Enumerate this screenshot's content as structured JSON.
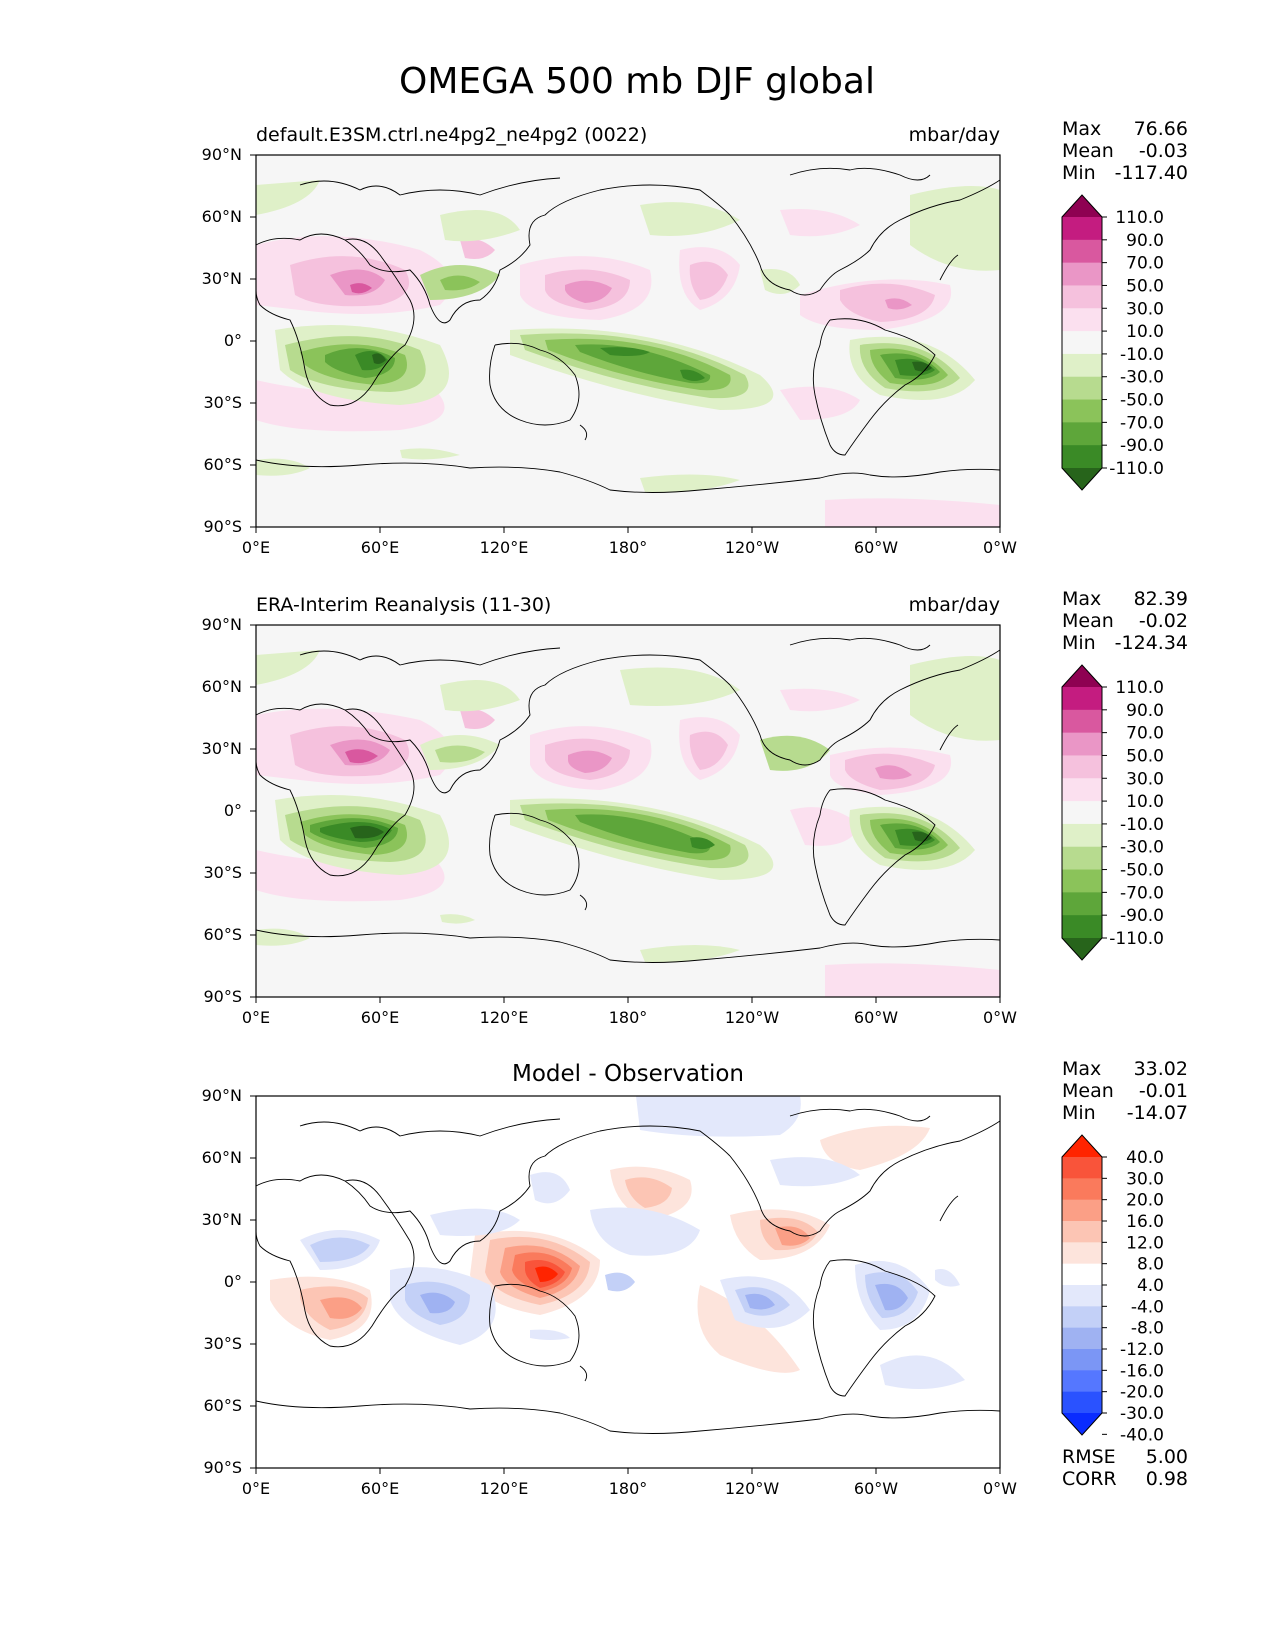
{
  "title": "OMEGA 500 mb DJF global",
  "x_ticks": [
    "0°E",
    "60°E",
    "120°E",
    "180°",
    "120°W",
    "60°W",
    "0°W"
  ],
  "y_ticks": [
    "90°N",
    "60°N",
    "30°N",
    "0°",
    "30°S",
    "60°S",
    "90°S"
  ],
  "stat_labels": {
    "max": "Max",
    "mean": "Mean",
    "min": "Min",
    "rmse": "RMSE",
    "corr": "CORR"
  },
  "colors": {
    "omega": [
      "#27641b",
      "#3a8a26",
      "#5ea63a",
      "#8bc35a",
      "#b7db8f",
      "#dff0c8",
      "#f6f6f6",
      "#fbe0ef",
      "#f5c1dd",
      "#ea96c6",
      "#d9589f",
      "#c41c80",
      "#8e0152"
    ],
    "diff": [
      "#0a2cff",
      "#2a52ff",
      "#5577ff",
      "#7b96f5",
      "#9fb2f2",
      "#c3d0f7",
      "#e3e8fb",
      "#ffffff",
      "#fde4dc",
      "#fcc5b4",
      "#fb9f86",
      "#fa7a5c",
      "#f9543a",
      "#ff2400"
    ]
  },
  "panels": [
    {
      "left_title": "default.E3SM.ctrl.ne4pg2_ne4pg2 (0022)",
      "center_title": "",
      "right_title": "mbar/day",
      "stats": {
        "max": "76.66",
        "mean": "-0.03",
        "min": "-117.40"
      },
      "colorbar_labels": [
        "110.0",
        "90.0",
        "70.0",
        "50.0",
        "30.0",
        "10.0",
        "-10.0",
        "-30.0",
        "-50.0",
        "-70.0",
        "-90.0",
        "-110.0"
      ]
    },
    {
      "left_title": "ERA-Interim Reanalysis (11-30)",
      "center_title": "",
      "right_title": "mbar/day",
      "stats": {
        "max": "82.39",
        "mean": "-0.02",
        "min": "-124.34"
      },
      "colorbar_labels": [
        "110.0",
        "90.0",
        "70.0",
        "50.0",
        "30.0",
        "10.0",
        "-10.0",
        "-30.0",
        "-50.0",
        "-70.0",
        "-90.0",
        "-110.0"
      ]
    },
    {
      "left_title": "",
      "center_title": "Model - Observation",
      "right_title": "",
      "stats": {
        "max": "33.02",
        "mean": "-0.01",
        "min": "-14.07",
        "rmse": "5.00",
        "corr": "0.98"
      },
      "colorbar_labels": [
        "40.0",
        "30.0",
        "20.0",
        "16.0",
        "12.0",
        "8.0",
        "4.0",
        "-4.0",
        "-8.0",
        "-12.0",
        "-16.0",
        "-20.0",
        "-30.0",
        "-40.0"
      ]
    }
  ],
  "chart_data": [
    {
      "type": "heatmap",
      "map": "global lat-lon contour",
      "title": "default.E3SM.ctrl.ne4pg2_ne4pg2 (0022)",
      "units": "mbar/day",
      "x_range": [
        0,
        360
      ],
      "y_range": [
        -90,
        90
      ],
      "levels": [
        -110,
        -90,
        -70,
        -50,
        -30,
        -10,
        10,
        30,
        50,
        70,
        90,
        110
      ],
      "features": [
        {
          "lon": 50,
          "lat": 15,
          "value": 60
        },
        {
          "lon": 150,
          "lat": 15,
          "value": 45
        },
        {
          "lon": 320,
          "lat": 15,
          "value": 40
        },
        {
          "lon": 40,
          "lat": -10,
          "value": -90
        },
        {
          "lon": 170,
          "lat": -8,
          "value": -80
        },
        {
          "lon": 315,
          "lat": -12,
          "value": -110
        },
        {
          "lon": 130,
          "lat": -5,
          "value": -50
        },
        {
          "lon": 85,
          "lat": 30,
          "value": -40
        }
      ]
    },
    {
      "type": "heatmap",
      "map": "global lat-lon contour",
      "title": "ERA-Interim Reanalysis (11-30)",
      "units": "mbar/day",
      "x_range": [
        0,
        360
      ],
      "y_range": [
        -90,
        90
      ],
      "levels": [
        -110,
        -90,
        -70,
        -50,
        -30,
        -10,
        10,
        30,
        50,
        70,
        90,
        110
      ],
      "features": [
        {
          "lon": 50,
          "lat": 15,
          "value": 65
        },
        {
          "lon": 165,
          "lat": 15,
          "value": 45
        },
        {
          "lon": 305,
          "lat": 15,
          "value": 40
        },
        {
          "lon": 45,
          "lat": -10,
          "value": -100
        },
        {
          "lon": 170,
          "lat": -8,
          "value": -80
        },
        {
          "lon": 315,
          "lat": -12,
          "value": -110
        },
        {
          "lon": 260,
          "lat": 20,
          "value": -40
        }
      ]
    },
    {
      "type": "heatmap",
      "map": "global lat-lon contour",
      "title": "Model - Observation",
      "x_range": [
        0,
        360
      ],
      "y_range": [
        -90,
        90
      ],
      "levels": [
        -40,
        -30,
        -20,
        -16,
        -12,
        -8,
        -4,
        4,
        8,
        12,
        16,
        20,
        30,
        40
      ],
      "features": [
        {
          "lon": 135,
          "lat": -3,
          "value": 33
        },
        {
          "lon": 280,
          "lat": 20,
          "value": 16
        },
        {
          "lon": 45,
          "lat": -12,
          "value": 16
        },
        {
          "lon": 130,
          "lat": 40,
          "value": 8
        },
        {
          "lon": 75,
          "lat": -8,
          "value": -10
        },
        {
          "lon": 300,
          "lat": -8,
          "value": -14
        },
        {
          "lon": 240,
          "lat": -10,
          "value": -12
        },
        {
          "lon": 195,
          "lat": 85,
          "value": -8
        }
      ]
    }
  ]
}
